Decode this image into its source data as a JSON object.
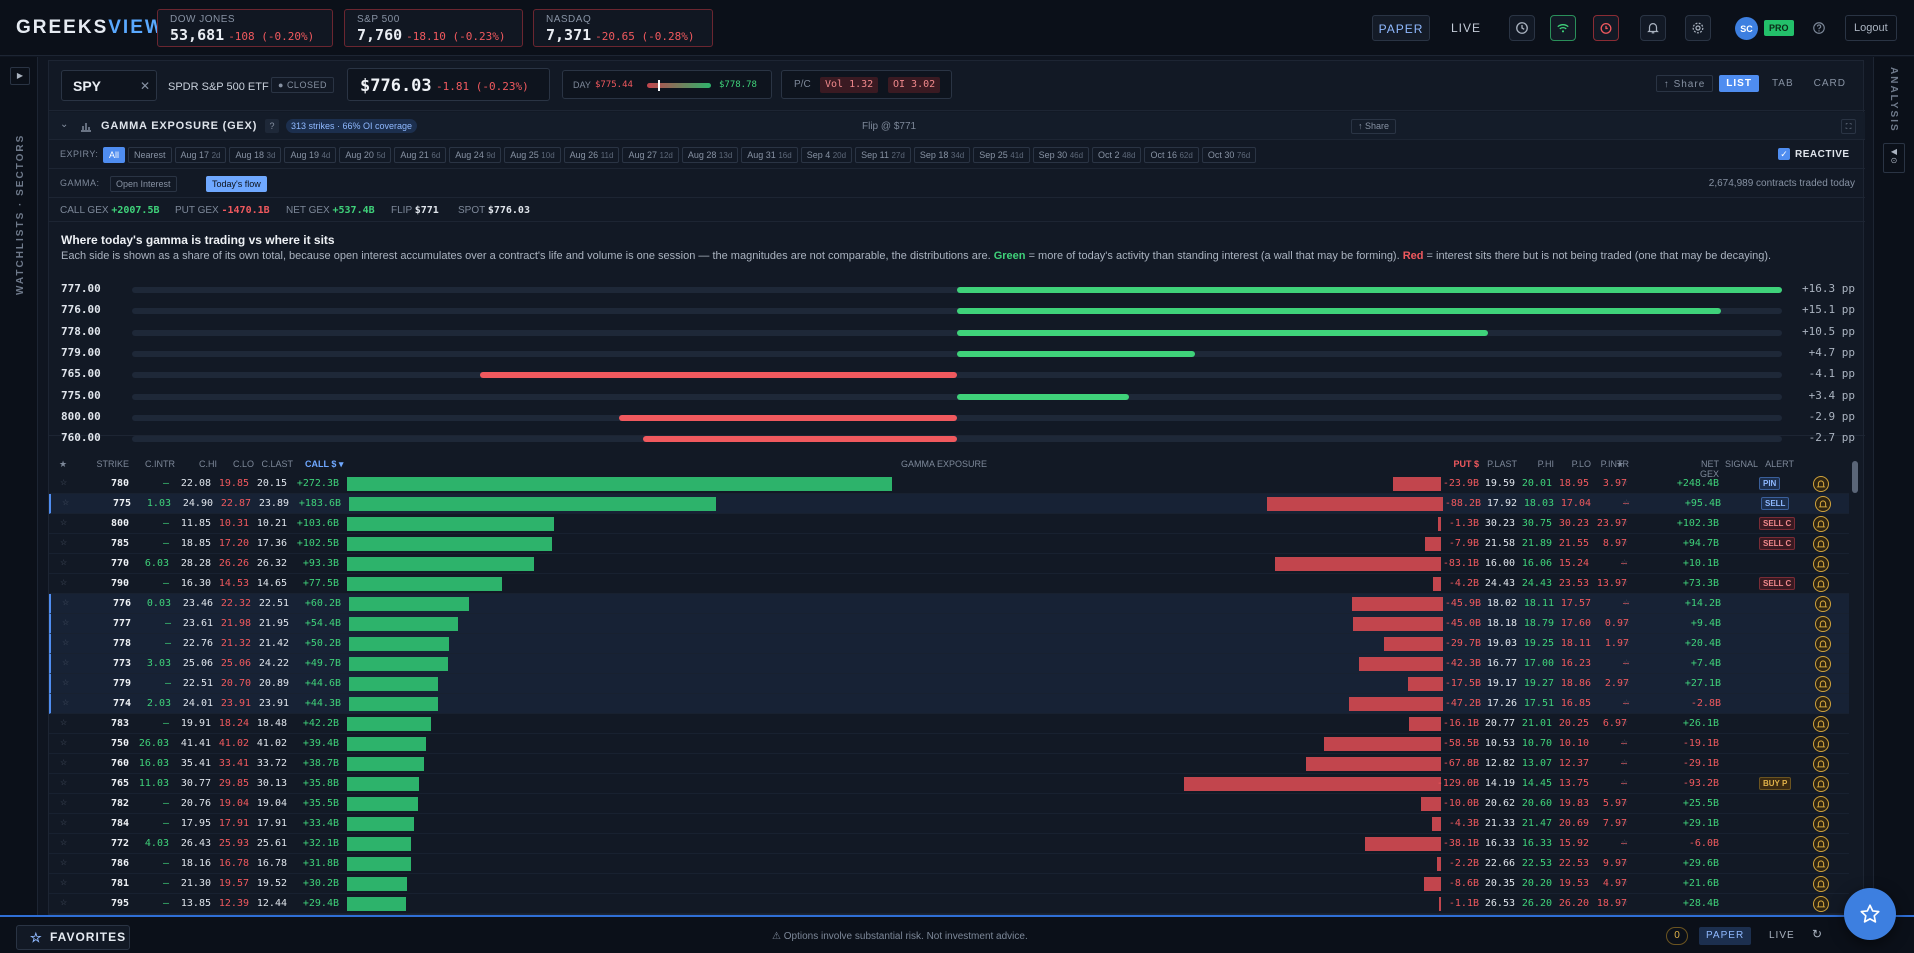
{
  "app": {
    "logo_main": "GREEKS",
    "logo_accent": "VIEW"
  },
  "indices": [
    {
      "name": "DOW JONES",
      "value": "53,681",
      "change": "-108 (-0.20%)"
    },
    {
      "name": "S&P 500",
      "value": "7,760",
      "change": "-18.10 (-0.23%)"
    },
    {
      "name": "NASDAQ",
      "value": "7,371",
      "change": "-20.65 (-0.28%)"
    }
  ],
  "topnav": {
    "paper": "PAPER",
    "live": "LIVE",
    "avatar": "SC",
    "pro": "PRO",
    "logout": "Logout"
  },
  "rails": {
    "left_label": "WATCHLISTS · SECTORS",
    "right_label": "ANALYSIS"
  },
  "ticker": {
    "symbol": "SPY",
    "name": "SPDR S&P 500 ETF",
    "status": "CLOSED",
    "price": "$776.03",
    "change": "-1.81 (-0.23%)",
    "day_label": "DAY",
    "day_low": "$775.44",
    "day_high": "$778.78",
    "day_range_pos": 0.17,
    "pc_label": "P/C",
    "vol": "Vol 1.32",
    "oi": "OI 3.02"
  },
  "view": {
    "share": "↑ Share",
    "list": "LIST",
    "tab": "TAB",
    "card": "CARD"
  },
  "gex": {
    "title": "GAMMA EXPOSURE (GEX)",
    "help": "?",
    "coverage": "313 strikes · 66% OI coverage",
    "flip": "Flip @ $771",
    "share": "↑ Share"
  },
  "expiry": {
    "label": "EXPIRY:",
    "reactive": "REACTIVE",
    "chips": [
      {
        "l": "All",
        "s": "",
        "on": true
      },
      {
        "l": "Nearest",
        "s": ""
      },
      {
        "l": "Aug 17",
        "s": "2d"
      },
      {
        "l": "Aug 18",
        "s": "3d"
      },
      {
        "l": "Aug 19",
        "s": "4d"
      },
      {
        "l": "Aug 20",
        "s": "5d"
      },
      {
        "l": "Aug 21",
        "s": "6d"
      },
      {
        "l": "Aug 24",
        "s": "9d"
      },
      {
        "l": "Aug 25",
        "s": "10d"
      },
      {
        "l": "Aug 26",
        "s": "11d"
      },
      {
        "l": "Aug 27",
        "s": "12d"
      },
      {
        "l": "Aug 28",
        "s": "13d"
      },
      {
        "l": "Aug 31",
        "s": "16d"
      },
      {
        "l": "Sep 4",
        "s": "20d"
      },
      {
        "l": "Sep 11",
        "s": "27d"
      },
      {
        "l": "Sep 18",
        "s": "34d"
      },
      {
        "l": "Sep 25",
        "s": "41d"
      },
      {
        "l": "Sep 30",
        "s": "46d"
      },
      {
        "l": "Oct 2",
        "s": "48d"
      },
      {
        "l": "Oct 16",
        "s": "62d"
      },
      {
        "l": "Oct 30",
        "s": "76d"
      }
    ]
  },
  "gamma": {
    "label": "GAMMA:",
    "open_interest": "Open Interest",
    "todays_flow": "Today's flow",
    "contracts": "2,674,989 contracts traded today"
  },
  "summary": {
    "call_label": "CALL GEX",
    "call": "+2007.5B",
    "put_label": "PUT GEX",
    "put": "-1470.1B",
    "net_label": "NET GEX",
    "net": "+537.4B",
    "flip_label": "FLIP",
    "flip": "$771",
    "spot_label": "SPOT",
    "spot": "$776.03"
  },
  "explain": {
    "title": "Where today's gamma is trading vs where it sits",
    "body_pre": "Each side is shown as a share of its own total, because open interest accumulates over a contract's life and volume is one session — the magnitudes are not comparable, the distributions are. ",
    "green": "Green",
    "body_mid": " = more of today's activity than standing interest (a wall that may be forming). ",
    "red": "Red",
    "body_post": " = interest sits there but is not being traded (one that may be decaying).",
    "rows": [
      {
        "k": "777.00",
        "v": 16.3,
        "pp": "+16.3 pp"
      },
      {
        "k": "776.00",
        "v": 15.1,
        "pp": "+15.1 pp"
      },
      {
        "k": "778.00",
        "v": 10.5,
        "pp": "+10.5 pp"
      },
      {
        "k": "779.00",
        "v": 4.7,
        "pp": "+4.7 pp"
      },
      {
        "k": "765.00",
        "v": -4.1,
        "pp": "-4.1 pp"
      },
      {
        "k": "775.00",
        "v": 3.4,
        "pp": "+3.4 pp"
      },
      {
        "k": "800.00",
        "v": -2.9,
        "pp": "-2.9 pp"
      },
      {
        "k": "760.00",
        "v": -2.7,
        "pp": "-2.7 pp"
      }
    ]
  },
  "table": {
    "headers": {
      "star": "★",
      "strike": "STRIKE",
      "cintr": "C.INTR",
      "chi": "C.HI",
      "clo": "C.LO",
      "clast": "C.LAST",
      "call": "CALL $ ▾",
      "gamma": "GAMMA EXPOSURE",
      "put": "PUT $",
      "plast": "P.LAST",
      "phi": "P.HI",
      "plo": "P.LO",
      "pintr": "P.INTR",
      "star2": "★",
      "netgex": "NET GEX",
      "signal": "SIGNAL",
      "alert": "ALERT"
    },
    "rows": [
      {
        "strike": "780",
        "cintr": "—",
        "chi": "22.08",
        "clo": "19.85",
        "clast": "20.15",
        "call": "+272.3B",
        "cv": 272.3,
        "put": "-23.9B",
        "pv": 23.9,
        "plast": "19.59",
        "phi": "20.01",
        "plo": "18.95",
        "pintr": "3.97",
        "net": "+248.4B",
        "sig": "PIN",
        "hl": false,
        "mk": false
      },
      {
        "strike": "775",
        "cintr": "1.03",
        "chi": "24.90",
        "clo": "22.87",
        "clast": "23.89",
        "call": "+183.6B",
        "cv": 183.6,
        "put": "-88.2B",
        "pv": 88.2,
        "plast": "17.92",
        "phi": "18.03",
        "plo": "17.04",
        "pintr": "—",
        "net": "+95.4B",
        "sig": "SELL",
        "hl": true,
        "mk": true
      },
      {
        "strike": "800",
        "cintr": "—",
        "chi": "11.85",
        "clo": "10.31",
        "clast": "10.21",
        "call": "+103.6B",
        "cv": 103.6,
        "put": "-1.3B",
        "pv": 1.3,
        "plast": "30.23",
        "phi": "30.75",
        "plo": "30.23",
        "pintr": "23.97",
        "net": "+102.3B",
        "sig": "SELL C",
        "hl": false,
        "mk": false
      },
      {
        "strike": "785",
        "cintr": "—",
        "chi": "18.85",
        "clo": "17.20",
        "clast": "17.36",
        "call": "+102.5B",
        "cv": 102.5,
        "put": "-7.9B",
        "pv": 7.9,
        "plast": "21.58",
        "phi": "21.89",
        "plo": "21.55",
        "pintr": "8.97",
        "net": "+94.7B",
        "sig": "SELL C",
        "hl": false,
        "mk": false
      },
      {
        "strike": "770",
        "cintr": "6.03",
        "chi": "28.28",
        "clo": "26.26",
        "clast": "26.32",
        "call": "+93.3B",
        "cv": 93.3,
        "put": "-83.1B",
        "pv": 83.1,
        "plast": "16.00",
        "phi": "16.06",
        "plo": "15.24",
        "pintr": "—",
        "net": "+10.1B",
        "sig": "",
        "hl": false,
        "mk": false
      },
      {
        "strike": "790",
        "cintr": "—",
        "chi": "16.30",
        "clo": "14.53",
        "clast": "14.65",
        "call": "+77.5B",
        "cv": 77.5,
        "put": "-4.2B",
        "pv": 4.2,
        "plast": "24.43",
        "phi": "24.43",
        "plo": "23.53",
        "pintr": "13.97",
        "net": "+73.3B",
        "sig": "SELL C",
        "hl": false,
        "mk": false
      },
      {
        "strike": "776",
        "cintr": "0.03",
        "chi": "23.46",
        "clo": "22.32",
        "clast": "22.51",
        "call": "+60.2B",
        "cv": 60.2,
        "put": "-45.9B",
        "pv": 45.9,
        "plast": "18.02",
        "phi": "18.11",
        "plo": "17.57",
        "pintr": "—",
        "net": "+14.2B",
        "sig": "",
        "hl": true,
        "mk": true
      },
      {
        "strike": "777",
        "cintr": "—",
        "chi": "23.61",
        "clo": "21.98",
        "clast": "21.95",
        "call": "+54.4B",
        "cv": 54.4,
        "put": "-45.0B",
        "pv": 45.0,
        "plast": "18.18",
        "phi": "18.79",
        "plo": "17.60",
        "pintr": "0.97",
        "net": "+9.4B",
        "sig": "",
        "hl": true,
        "mk": true
      },
      {
        "strike": "778",
        "cintr": "—",
        "chi": "22.76",
        "clo": "21.32",
        "clast": "21.42",
        "call": "+50.2B",
        "cv": 50.2,
        "put": "-29.7B",
        "pv": 29.7,
        "plast": "19.03",
        "phi": "19.25",
        "plo": "18.11",
        "pintr": "1.97",
        "net": "+20.4B",
        "sig": "",
        "hl": true,
        "mk": true
      },
      {
        "strike": "773",
        "cintr": "3.03",
        "chi": "25.06",
        "clo": "25.06",
        "clast": "24.22",
        "call": "+49.7B",
        "cv": 49.7,
        "put": "-42.3B",
        "pv": 42.3,
        "plast": "16.77",
        "phi": "17.00",
        "plo": "16.23",
        "pintr": "—",
        "net": "+7.4B",
        "sig": "",
        "hl": true,
        "mk": true
      },
      {
        "strike": "779",
        "cintr": "—",
        "chi": "22.51",
        "clo": "20.70",
        "clast": "20.89",
        "call": "+44.6B",
        "cv": 44.6,
        "put": "-17.5B",
        "pv": 17.5,
        "plast": "19.17",
        "phi": "19.27",
        "plo": "18.86",
        "pintr": "2.97",
        "net": "+27.1B",
        "sig": "",
        "hl": true,
        "mk": true
      },
      {
        "strike": "774",
        "cintr": "2.03",
        "chi": "24.01",
        "clo": "23.91",
        "clast": "23.91",
        "call": "+44.3B",
        "cv": 44.3,
        "put": "-47.2B",
        "pv": 47.2,
        "plast": "17.26",
        "phi": "17.51",
        "plo": "16.85",
        "pintr": "—",
        "net": "-2.8B",
        "sig": "",
        "hl": true,
        "mk": true
      },
      {
        "strike": "783",
        "cintr": "—",
        "chi": "19.91",
        "clo": "18.24",
        "clast": "18.48",
        "call": "+42.2B",
        "cv": 42.2,
        "put": "-16.1B",
        "pv": 16.1,
        "plast": "20.77",
        "phi": "21.01",
        "plo": "20.25",
        "pintr": "6.97",
        "net": "+26.1B",
        "sig": "",
        "hl": false,
        "mk": false
      },
      {
        "strike": "750",
        "cintr": "26.03",
        "chi": "41.41",
        "clo": "41.02",
        "clast": "41.02",
        "call": "+39.4B",
        "cv": 39.4,
        "put": "-58.5B",
        "pv": 58.5,
        "plast": "10.53",
        "phi": "10.70",
        "plo": "10.10",
        "pintr": "—",
        "net": "-19.1B",
        "sig": "",
        "hl": false,
        "mk": false
      },
      {
        "strike": "760",
        "cintr": "16.03",
        "chi": "35.41",
        "clo": "33.41",
        "clast": "33.72",
        "call": "+38.7B",
        "cv": 38.7,
        "put": "-67.8B",
        "pv": 67.8,
        "plast": "12.82",
        "phi": "13.07",
        "plo": "12.37",
        "pintr": "—",
        "net": "-29.1B",
        "sig": "",
        "hl": false,
        "mk": false
      },
      {
        "strike": "765",
        "cintr": "11.03",
        "chi": "30.77",
        "clo": "29.85",
        "clast": "30.13",
        "call": "+35.8B",
        "cv": 35.8,
        "put": "-129.0B",
        "pv": 129.0,
        "plast": "14.19",
        "phi": "14.45",
        "plo": "13.75",
        "pintr": "—",
        "net": "-93.2B",
        "sig": "BUY P",
        "hl": false,
        "mk": false
      },
      {
        "strike": "782",
        "cintr": "—",
        "chi": "20.76",
        "clo": "19.04",
        "clast": "19.04",
        "call": "+35.5B",
        "cv": 35.5,
        "put": "-10.0B",
        "pv": 10.0,
        "plast": "20.62",
        "phi": "20.60",
        "plo": "19.83",
        "pintr": "5.97",
        "net": "+25.5B",
        "sig": "",
        "hl": false,
        "mk": false
      },
      {
        "strike": "784",
        "cintr": "—",
        "chi": "17.95",
        "clo": "17.91",
        "clast": "17.91",
        "call": "+33.4B",
        "cv": 33.4,
        "put": "-4.3B",
        "pv": 4.3,
        "plast": "21.33",
        "phi": "21.47",
        "plo": "20.69",
        "pintr": "7.97",
        "net": "+29.1B",
        "sig": "",
        "hl": false,
        "mk": false
      },
      {
        "strike": "772",
        "cintr": "4.03",
        "chi": "26.43",
        "clo": "25.93",
        "clast": "25.61",
        "call": "+32.1B",
        "cv": 32.1,
        "put": "-38.1B",
        "pv": 38.1,
        "plast": "16.33",
        "phi": "16.33",
        "plo": "15.92",
        "pintr": "—",
        "net": "-6.0B",
        "sig": "",
        "hl": false,
        "mk": false
      },
      {
        "strike": "786",
        "cintr": "—",
        "chi": "18.16",
        "clo": "16.78",
        "clast": "16.78",
        "call": "+31.8B",
        "cv": 31.8,
        "put": "-2.2B",
        "pv": 2.2,
        "plast": "22.66",
        "phi": "22.53",
        "plo": "22.53",
        "pintr": "9.97",
        "net": "+29.6B",
        "sig": "",
        "hl": false,
        "mk": false
      },
      {
        "strike": "781",
        "cintr": "—",
        "chi": "21.30",
        "clo": "19.57",
        "clast": "19.52",
        "call": "+30.2B",
        "cv": 30.2,
        "put": "-8.6B",
        "pv": 8.6,
        "plast": "20.35",
        "phi": "20.20",
        "plo": "19.53",
        "pintr": "4.97",
        "net": "+21.6B",
        "sig": "",
        "hl": false,
        "mk": false
      },
      {
        "strike": "795",
        "cintr": "—",
        "chi": "13.85",
        "clo": "12.39",
        "clast": "12.44",
        "call": "+29.4B",
        "cv": 29.4,
        "put": "-1.1B",
        "pv": 1.1,
        "plast": "26.53",
        "phi": "26.20",
        "plo": "26.20",
        "pintr": "18.97",
        "net": "+28.4B",
        "sig": "",
        "hl": false,
        "mk": false
      }
    ]
  },
  "footer": {
    "favorites": "FAVORITES",
    "disclaimer": "⚠ Options involve substantial risk. Not investment advice.",
    "count": "0",
    "paper": "PAPER",
    "live": "LIVE"
  }
}
